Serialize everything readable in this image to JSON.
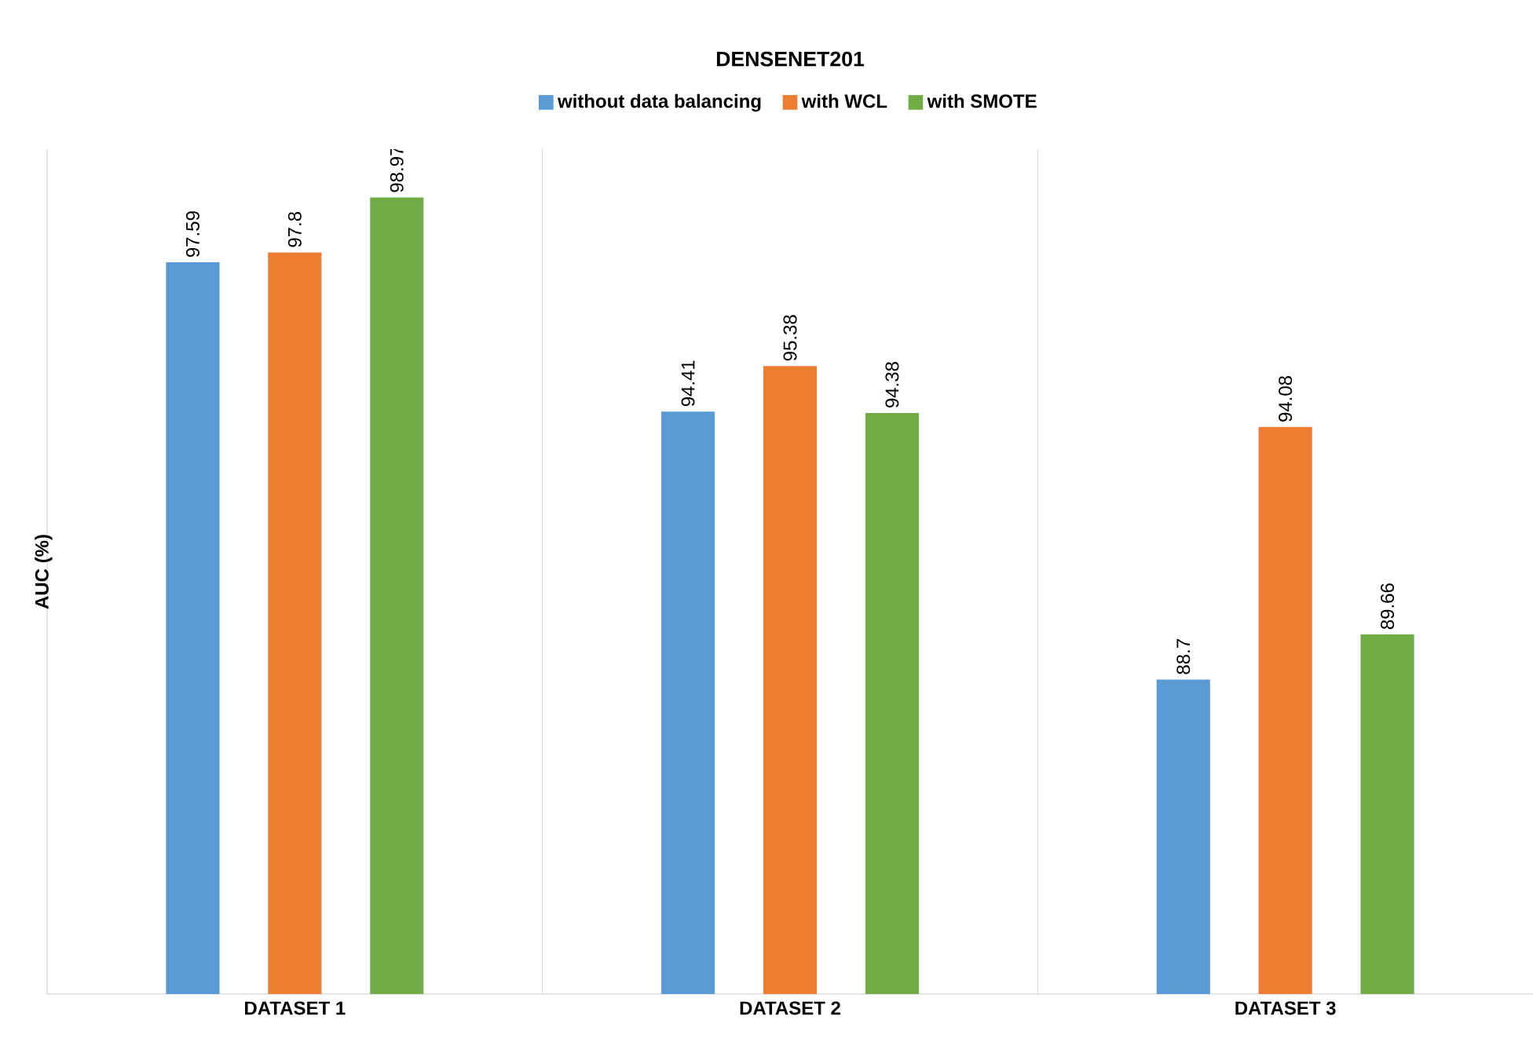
{
  "chart_data": {
    "type": "bar",
    "title": "DENSENET201",
    "ylabel": "AUC (%)",
    "categories": [
      "DATASET 1",
      "DATASET 2",
      "DATASET 3"
    ],
    "series": [
      {
        "name": "without data balancing",
        "color": "#5b9bd5",
        "values": [
          97.59,
          94.41,
          88.7
        ],
        "value_labels": [
          "97.59",
          "94.41",
          "88.7"
        ]
      },
      {
        "name": "with WCL",
        "color": "#ed7d31",
        "values": [
          97.8,
          95.38,
          94.08
        ],
        "value_labels": [
          "97.8",
          "95.38",
          "94.08"
        ]
      },
      {
        "name": "with SMOTE",
        "color": "#70ad47",
        "values": [
          98.97,
          94.38,
          89.66
        ],
        "value_labels": [
          "98.97",
          "94.38",
          "89.66"
        ]
      }
    ],
    "ylim": [
      82,
      100
    ],
    "grid": "x",
    "legend": "top",
    "tick_labels": "x"
  }
}
